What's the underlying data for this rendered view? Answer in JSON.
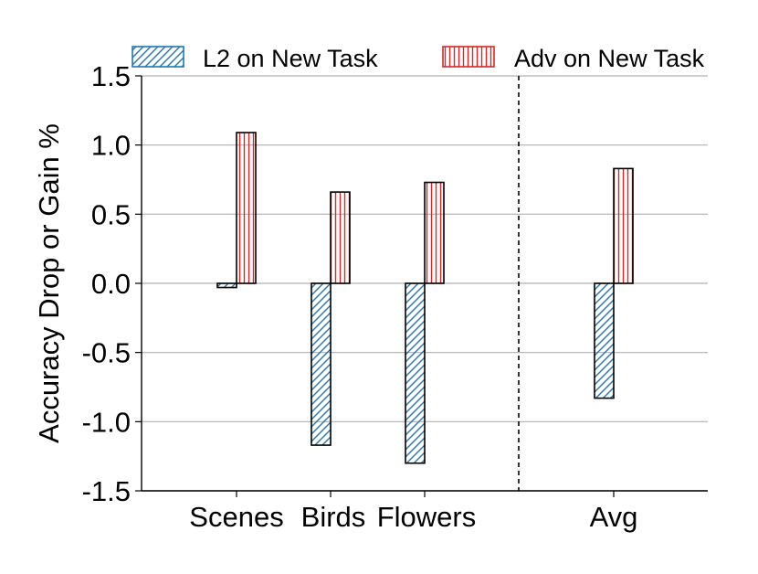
{
  "chart_data": {
    "type": "bar",
    "categories": [
      "Scenes",
      "Birds",
      "Flowers",
      "Avg"
    ],
    "series": [
      {
        "name": "L2 on New Task",
        "values": [
          -0.03,
          -1.17,
          -1.3,
          -0.83
        ],
        "color": "#1f77b4",
        "hatch": "diagonal"
      },
      {
        "name": "Adv on New Task",
        "values": [
          1.09,
          0.66,
          0.73,
          0.83
        ],
        "color": "#d62728",
        "hatch": "vertical"
      }
    ],
    "ylabel": "Accuracy Drop or Gain %",
    "ylim": [
      -1.5,
      1.5
    ],
    "yticks": [
      "-1.5",
      "-1.0",
      "-0.5",
      "0.0",
      "0.5",
      "1.0",
      "1.5"
    ],
    "grid": "horizontal",
    "legend": "top",
    "separator": "dashed line before Avg"
  }
}
